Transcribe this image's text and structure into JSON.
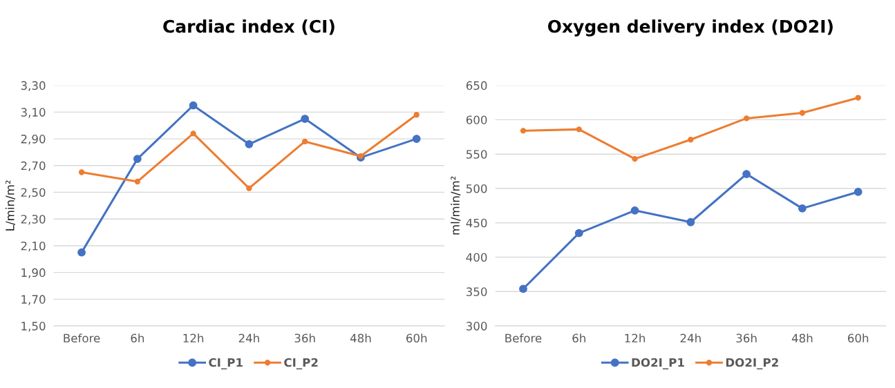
{
  "chart_data": [
    {
      "type": "line",
      "title": "Cardiac index (CI)",
      "ylabel": "L/min/m²",
      "categories": [
        "Before",
        "6h",
        "12h",
        "24h",
        "36h",
        "48h",
        "60h"
      ],
      "series": [
        {
          "name": "CI_P1",
          "color": "#4472c4",
          "values": [
            2.05,
            2.75,
            3.15,
            2.86,
            3.05,
            2.76,
            2.9
          ]
        },
        {
          "name": "CI_P2",
          "color": "#ed7d31",
          "values": [
            2.65,
            2.58,
            2.94,
            2.53,
            2.88,
            2.77,
            3.08
          ]
        }
      ],
      "ylim": [
        1.5,
        3.3
      ],
      "yticks": [
        {
          "value": 1.5,
          "label": "1,50"
        },
        {
          "value": 1.7,
          "label": "1,70"
        },
        {
          "value": 1.9,
          "label": "1,90"
        },
        {
          "value": 2.1,
          "label": "2,10"
        },
        {
          "value": 2.3,
          "label": "2,30"
        },
        {
          "value": 2.5,
          "label": "2,50"
        },
        {
          "value": 2.7,
          "label": "2,70"
        },
        {
          "value": 2.9,
          "label": "2,90"
        },
        {
          "value": 3.1,
          "label": "3,10"
        },
        {
          "value": 3.3,
          "label": "3,30"
        }
      ],
      "grid": "y",
      "legend": "bottom",
      "marker": "circle",
      "line_style": "solid"
    },
    {
      "type": "line",
      "title": "Oxygen delivery index (DO2I)",
      "ylabel": "ml/min/m²",
      "categories": [
        "Before",
        "6h",
        "12h",
        "24h",
        "36h",
        "48h",
        "60h"
      ],
      "series": [
        {
          "name": "DO2I_P1",
          "color": "#4472c4",
          "values": [
            354,
            435,
            468,
            451,
            521,
            471,
            495
          ]
        },
        {
          "name": "DO2I_P2",
          "color": "#ed7d31",
          "values": [
            584,
            586,
            543,
            571,
            602,
            610,
            632
          ]
        }
      ],
      "ylim": [
        300,
        650
      ],
      "yticks": [
        300,
        350,
        400,
        450,
        500,
        550,
        600,
        650
      ],
      "grid": "y",
      "legend": "bottom",
      "marker": "circle",
      "line_style": "solid"
    }
  ]
}
